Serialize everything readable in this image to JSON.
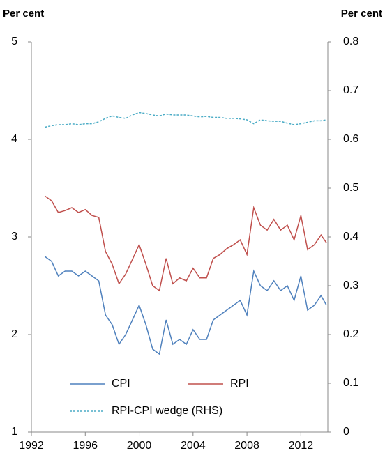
{
  "chart_data": {
    "type": "line",
    "y_label": "Per cent",
    "y2_label": "Per cent",
    "x": [
      1993,
      1993.5,
      1994,
      1994.5,
      1995,
      1995.5,
      1996,
      1996.5,
      1997,
      1997.5,
      1998,
      1998.5,
      1999,
      1999.5,
      2000,
      2000.5,
      2001,
      2001.5,
      2002,
      2002.5,
      2003,
      2003.5,
      2004,
      2004.5,
      2005,
      2005.5,
      2006,
      2006.5,
      2007,
      2007.5,
      2008,
      2008.5,
      2009,
      2009.5,
      2010,
      2010.5,
      2011,
      2011.5,
      2012,
      2012.5,
      2013,
      2013.5,
      2013.9
    ],
    "series": [
      {
        "name": "CPI",
        "color": "#4f81bd",
        "dashed": false,
        "values": [
          2.8,
          2.75,
          2.6,
          2.65,
          2.65,
          2.6,
          2.65,
          2.6,
          2.55,
          2.2,
          2.1,
          1.9,
          2.0,
          2.15,
          2.3,
          2.1,
          1.85,
          1.8,
          2.15,
          1.9,
          1.95,
          1.9,
          2.05,
          1.95,
          1.95,
          2.15,
          2.2,
          2.25,
          2.3,
          2.35,
          2.2,
          2.65,
          2.5,
          2.45,
          2.55,
          2.45,
          2.5,
          2.35,
          2.6,
          2.25,
          2.3,
          2.4,
          2.3
        ]
      },
      {
        "name": "RPI",
        "color": "#c0504d",
        "dashed": false,
        "values": [
          3.42,
          3.37,
          3.25,
          3.27,
          3.3,
          3.25,
          3.28,
          3.22,
          3.2,
          2.85,
          2.72,
          2.52,
          2.62,
          2.77,
          2.92,
          2.72,
          2.5,
          2.45,
          2.78,
          2.52,
          2.58,
          2.55,
          2.68,
          2.58,
          2.58,
          2.78,
          2.82,
          2.88,
          2.92,
          2.97,
          2.82,
          3.3,
          3.12,
          3.07,
          3.18,
          3.07,
          3.12,
          2.97,
          3.22,
          2.87,
          2.92,
          3.02,
          2.94
        ]
      },
      {
        "name": "RPI-CPI wedge (RHS)",
        "color": "#4bacc6",
        "dashed": true,
        "axis": "y2",
        "values": [
          0.625,
          0.628,
          0.63,
          0.63,
          0.632,
          0.63,
          0.632,
          0.632,
          0.636,
          0.643,
          0.648,
          0.645,
          0.643,
          0.65,
          0.655,
          0.653,
          0.65,
          0.648,
          0.652,
          0.65,
          0.65,
          0.65,
          0.648,
          0.646,
          0.647,
          0.645,
          0.645,
          0.643,
          0.643,
          0.642,
          0.64,
          0.632,
          0.64,
          0.638,
          0.637,
          0.637,
          0.633,
          0.63,
          0.632,
          0.635,
          0.638,
          0.638,
          0.64
        ]
      }
    ],
    "xlim": [
      1992,
      2014
    ],
    "xticks": [
      1992,
      1996,
      2000,
      2004,
      2008,
      2012
    ],
    "ylim": [
      1,
      5
    ],
    "yticks": [
      1,
      2,
      3,
      4,
      5
    ],
    "y2lim": [
      0,
      0.8
    ],
    "y2ticks": [
      0,
      0.1,
      0.2,
      0.3,
      0.4,
      0.5,
      0.6,
      0.7,
      0.8
    ],
    "grid": false
  }
}
